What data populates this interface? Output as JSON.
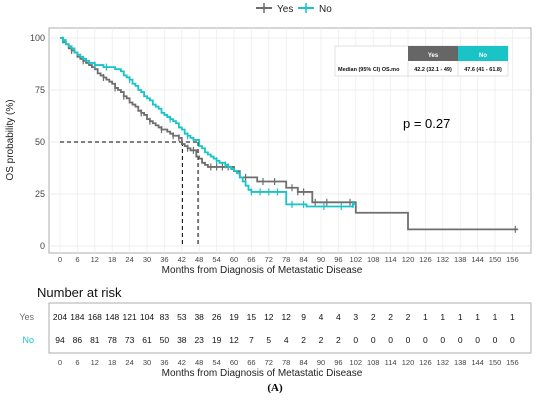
{
  "caption": "(A)",
  "colors": {
    "yes": "#6e6e6e",
    "no": "#19c3c6",
    "header_yes": "#666666",
    "header_no": "#19c3c6"
  },
  "chart_data": [
    {
      "type": "line",
      "subtype": "kaplan-meier",
      "xlabel": "Months from Diagnosis of Metastatic Disease",
      "ylabel": "OS probability (%)",
      "xlim": [
        0,
        160
      ],
      "ylim": [
        0,
        100
      ],
      "xticks": [
        0,
        6,
        12,
        18,
        24,
        30,
        36,
        42,
        48,
        54,
        60,
        66,
        72,
        78,
        84,
        90,
        96,
        102,
        108,
        114,
        120,
        126,
        132,
        138,
        144,
        150,
        156
      ],
      "yticks": [
        0,
        25,
        50,
        75,
        100
      ],
      "grid": true,
      "legend": {
        "position": "top-center",
        "entries": [
          "Yes",
          "No"
        ]
      },
      "annotation": "p = 0.27",
      "median_lines": {
        "y": 50,
        "x_yes": 42.2,
        "x_no": 47.6
      },
      "median_table": {
        "row_label": "Median (95% CI) OS.mo",
        "headers": [
          "Yes",
          "No"
        ],
        "values": [
          "42.2 (32.1 - 49)",
          "47.6 (41 - 61.8)"
        ]
      },
      "series": [
        {
          "name": "Yes",
          "color": "#6e6e6e",
          "points": [
            [
              0,
              100
            ],
            [
              1,
              98
            ],
            [
              2,
              97
            ],
            [
              3,
              95
            ],
            [
              4,
              94
            ],
            [
              5,
              93
            ],
            [
              6,
              91
            ],
            [
              7,
              90
            ],
            [
              8,
              89
            ],
            [
              9,
              88
            ],
            [
              10,
              87
            ],
            [
              11,
              86
            ],
            [
              12,
              85
            ],
            [
              13,
              83
            ],
            [
              14,
              82
            ],
            [
              15,
              81
            ],
            [
              16,
              80
            ],
            [
              17,
              79
            ],
            [
              18,
              78
            ],
            [
              19,
              76
            ],
            [
              20,
              75
            ],
            [
              21,
              74
            ],
            [
              22,
              72
            ],
            [
              23,
              71
            ],
            [
              24,
              69
            ],
            [
              25,
              68
            ],
            [
              26,
              67
            ],
            [
              27,
              65
            ],
            [
              28,
              64
            ],
            [
              29,
              63
            ],
            [
              30,
              61
            ],
            [
              31,
              60
            ],
            [
              32,
              59
            ],
            [
              33,
              58
            ],
            [
              34,
              57
            ],
            [
              35,
              56
            ],
            [
              36,
              56
            ],
            [
              37,
              55
            ],
            [
              38,
              54
            ],
            [
              39,
              53
            ],
            [
              40,
              53
            ],
            [
              41,
              52
            ],
            [
              42,
              49
            ],
            [
              43,
              48
            ],
            [
              44,
              47
            ],
            [
              45,
              46
            ],
            [
              46,
              46
            ],
            [
              47,
              43
            ],
            [
              48,
              42
            ],
            [
              49,
              40
            ],
            [
              50,
              39
            ],
            [
              51,
              38
            ],
            [
              52,
              38
            ],
            [
              55,
              38
            ],
            [
              58,
              38
            ],
            [
              60,
              36
            ],
            [
              62,
              33
            ],
            [
              66,
              33
            ],
            [
              68,
              31
            ],
            [
              72,
              31
            ],
            [
              76,
              31
            ],
            [
              78,
              28
            ],
            [
              80,
              28
            ],
            [
              82,
              26
            ],
            [
              84,
              26
            ],
            [
              86,
              26
            ],
            [
              87,
              21
            ],
            [
              90,
              21
            ],
            [
              94,
              21
            ],
            [
              98,
              21
            ],
            [
              100,
              21
            ],
            [
              102,
              16
            ],
            [
              108,
              16
            ],
            [
              114,
              16
            ],
            [
              119,
              16
            ],
            [
              120,
              8
            ],
            [
              130,
              8
            ],
            [
              140,
              8
            ],
            [
              150,
              8
            ],
            [
              158,
              8
            ]
          ],
          "censor": [
            4,
            8,
            15,
            19,
            22,
            28,
            31,
            35,
            39,
            41,
            44,
            46,
            52,
            54,
            56,
            58,
            64,
            70,
            74,
            80,
            82,
            84,
            88,
            92,
            100,
            157
          ]
        },
        {
          "name": "No",
          "color": "#19c3c6",
          "points": [
            [
              0,
              100
            ],
            [
              1,
              99
            ],
            [
              2,
              97
            ],
            [
              3,
              96
            ],
            [
              4,
              95
            ],
            [
              5,
              93
            ],
            [
              6,
              92
            ],
            [
              7,
              91
            ],
            [
              8,
              90
            ],
            [
              9,
              89
            ],
            [
              10,
              88
            ],
            [
              11,
              88
            ],
            [
              12,
              87
            ],
            [
              13,
              87
            ],
            [
              14,
              87
            ],
            [
              15,
              86
            ],
            [
              16,
              86
            ],
            [
              17,
              86
            ],
            [
              18,
              86
            ],
            [
              19,
              85
            ],
            [
              20,
              85
            ],
            [
              21,
              84
            ],
            [
              22,
              82
            ],
            [
              23,
              81
            ],
            [
              24,
              80
            ],
            [
              25,
              78
            ],
            [
              26,
              77
            ],
            [
              27,
              75
            ],
            [
              28,
              74
            ],
            [
              29,
              72
            ],
            [
              30,
              71
            ],
            [
              31,
              70
            ],
            [
              32,
              68
            ],
            [
              33,
              67
            ],
            [
              34,
              66
            ],
            [
              35,
              64
            ],
            [
              36,
              63
            ],
            [
              37,
              62
            ],
            [
              38,
              61
            ],
            [
              39,
              60
            ],
            [
              40,
              59
            ],
            [
              41,
              57
            ],
            [
              42,
              56
            ],
            [
              43,
              54
            ],
            [
              44,
              53
            ],
            [
              45,
              52
            ],
            [
              46,
              51
            ],
            [
              47,
              51
            ],
            [
              48,
              48
            ],
            [
              49,
              47
            ],
            [
              50,
              45
            ],
            [
              51,
              44
            ],
            [
              52,
              43
            ],
            [
              53,
              42
            ],
            [
              54,
              41
            ],
            [
              55,
              40
            ],
            [
              56,
              40
            ],
            [
              57,
              39
            ],
            [
              58,
              38
            ],
            [
              59,
              37
            ],
            [
              60,
              36
            ],
            [
              61,
              35
            ],
            [
              62,
              33
            ],
            [
              63,
              31
            ],
            [
              64,
              29
            ],
            [
              65,
              27
            ],
            [
              66,
              26
            ],
            [
              70,
              26
            ],
            [
              74,
              26
            ],
            [
              77,
              26
            ],
            [
              78,
              20
            ],
            [
              82,
              20
            ],
            [
              84,
              20
            ],
            [
              85,
              19
            ],
            [
              88,
              19
            ],
            [
              92,
              19
            ],
            [
              96,
              19
            ],
            [
              99,
              19
            ],
            [
              101,
              20
            ],
            [
              102,
              20
            ]
          ],
          "censor": [
            1,
            12,
            16,
            24,
            38,
            44,
            54,
            57,
            66,
            69,
            72,
            75,
            80,
            84,
            91,
            97,
            101
          ]
        }
      ]
    },
    {
      "type": "table",
      "title": "Number at risk",
      "xlabel": "Months from Diagnosis of Metastatic Disease",
      "xticks": [
        0,
        6,
        12,
        18,
        24,
        30,
        36,
        42,
        48,
        54,
        60,
        66,
        72,
        78,
        84,
        90,
        96,
        102,
        108,
        114,
        120,
        126,
        132,
        138,
        144,
        150,
        156
      ],
      "rows": [
        {
          "name": "Yes",
          "color": "#6e6e6e",
          "values": [
            204,
            184,
            168,
            148,
            121,
            104,
            83,
            53,
            38,
            26,
            19,
            15,
            12,
            12,
            9,
            4,
            4,
            3,
            2,
            2,
            2,
            1,
            1,
            1,
            1,
            1,
            1
          ]
        },
        {
          "name": "No",
          "color": "#19c3c6",
          "values": [
            94,
            86,
            81,
            78,
            73,
            61,
            50,
            38,
            23,
            19,
            12,
            7,
            5,
            4,
            2,
            2,
            2,
            0,
            0,
            0,
            0,
            0,
            0,
            0,
            0,
            0,
            0
          ]
        }
      ]
    }
  ]
}
